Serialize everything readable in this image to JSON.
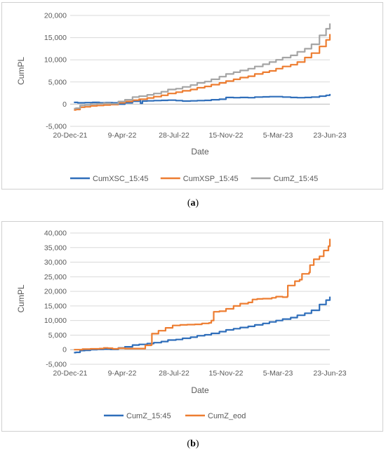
{
  "chart_data": [
    {
      "panel_label": "a",
      "type": "line",
      "title": "",
      "xlabel": "Date",
      "ylabel": "CumPL",
      "ylim": [
        -5000,
        20000
      ],
      "yticks": [
        -5000,
        0,
        5000,
        10000,
        15000,
        20000
      ],
      "ytick_labels": [
        "-5,000",
        "0",
        "5,000",
        "10,000",
        "15,000",
        "20,000"
      ],
      "xlim": [
        "2021-12-20",
        "2023-06-23"
      ],
      "xtick_labels": [
        "20-Dec-21",
        "9-Apr-22",
        "28-Jul-22",
        "15-Nov-22",
        "5-Mar-23",
        "23-Jun-23"
      ],
      "grid": "horizontal",
      "legend_position": "bottom",
      "series": [
        {
          "name": "CumXSC_15:45",
          "color": "#2f6eba",
          "x": [
            "2021-12-28",
            "2022-01-05",
            "2022-01-20",
            "2022-02-05",
            "2022-02-20",
            "2022-03-05",
            "2022-03-20",
            "2022-04-01",
            "2022-04-15",
            "2022-05-01",
            "2022-05-15",
            "2022-05-18",
            "2022-05-22",
            "2022-06-01",
            "2022-06-15",
            "2022-07-01",
            "2022-07-15",
            "2022-08-01",
            "2022-08-15",
            "2022-09-01",
            "2022-09-15",
            "2022-10-01",
            "2022-10-15",
            "2022-11-01",
            "2022-11-15",
            "2022-12-01",
            "2022-12-15",
            "2023-01-01",
            "2023-01-15",
            "2023-02-01",
            "2023-02-15",
            "2023-03-01",
            "2023-03-15",
            "2023-04-01",
            "2023-04-15",
            "2023-05-01",
            "2023-05-15",
            "2023-06-01",
            "2023-06-15",
            "2023-06-23"
          ],
          "y": [
            400,
            300,
            350,
            400,
            300,
            350,
            300,
            0,
            300,
            650,
            800,
            200,
            700,
            750,
            800,
            850,
            900,
            800,
            700,
            750,
            800,
            850,
            1000,
            1100,
            1500,
            1450,
            1500,
            1450,
            1600,
            1650,
            1700,
            1700,
            1600,
            1500,
            1450,
            1500,
            1600,
            1800,
            2000,
            2300
          ]
        },
        {
          "name": "CumXSP_15:45",
          "color": "#ed7d31",
          "x": [
            "2021-12-28",
            "2022-01-01",
            "2022-01-10",
            "2022-01-20",
            "2022-02-01",
            "2022-02-15",
            "2022-03-01",
            "2022-03-15",
            "2022-04-01",
            "2022-04-15",
            "2022-05-01",
            "2022-05-15",
            "2022-06-01",
            "2022-06-15",
            "2022-07-01",
            "2022-07-15",
            "2022-08-01",
            "2022-08-15",
            "2022-09-01",
            "2022-09-15",
            "2022-10-01",
            "2022-10-15",
            "2022-11-01",
            "2022-11-15",
            "2022-12-01",
            "2022-12-15",
            "2023-01-01",
            "2023-01-15",
            "2023-02-01",
            "2023-02-15",
            "2023-03-01",
            "2023-03-15",
            "2023-04-01",
            "2023-04-15",
            "2023-05-01",
            "2023-05-15",
            "2023-06-01",
            "2023-06-15",
            "2023-06-23"
          ],
          "y": [
            -1300,
            -1200,
            -700,
            -600,
            -400,
            -300,
            -200,
            -100,
            300,
            600,
            900,
            1100,
            1400,
            1700,
            2000,
            2400,
            2700,
            3000,
            3300,
            3700,
            4000,
            4400,
            4800,
            5200,
            5600,
            6000,
            6300,
            6800,
            7200,
            7500,
            8000,
            8500,
            8900,
            9500,
            10500,
            11500,
            13000,
            14500,
            15800
          ]
        },
        {
          "name": "CumZ_15:45",
          "color": "#a5a5a5",
          "x": [
            "2021-12-28",
            "2022-01-01",
            "2022-01-10",
            "2022-01-20",
            "2022-02-01",
            "2022-02-15",
            "2022-03-01",
            "2022-03-15",
            "2022-04-01",
            "2022-04-15",
            "2022-05-01",
            "2022-05-15",
            "2022-06-01",
            "2022-06-15",
            "2022-07-01",
            "2022-07-15",
            "2022-08-01",
            "2022-08-15",
            "2022-09-01",
            "2022-09-15",
            "2022-10-01",
            "2022-10-15",
            "2022-11-01",
            "2022-11-15",
            "2022-12-01",
            "2022-12-15",
            "2023-01-01",
            "2023-01-15",
            "2023-02-01",
            "2023-02-15",
            "2023-03-01",
            "2023-03-15",
            "2023-04-01",
            "2023-04-15",
            "2023-05-01",
            "2023-05-15",
            "2023-06-01",
            "2023-06-15",
            "2023-06-23"
          ],
          "y": [
            -1000,
            -900,
            -300,
            -200,
            0,
            100,
            200,
            100,
            600,
            1000,
            1600,
            1800,
            2100,
            2400,
            2800,
            3300,
            3500,
            3900,
            4300,
            4800,
            5100,
            5600,
            6200,
            6800,
            7200,
            7600,
            8000,
            8500,
            9000,
            9500,
            10000,
            10500,
            11000,
            11800,
            12500,
            13500,
            15500,
            17000,
            18200
          ]
        }
      ]
    },
    {
      "panel_label": "b",
      "type": "line",
      "title": "",
      "xlabel": "Date",
      "ylabel": "CumPL",
      "ylim": [
        -5000,
        40000
      ],
      "yticks": [
        -5000,
        0,
        5000,
        10000,
        15000,
        20000,
        25000,
        30000,
        35000,
        40000
      ],
      "ytick_labels": [
        "-5,000",
        "0",
        "5,000",
        "10,000",
        "15,000",
        "20,000",
        "25,000",
        "30,000",
        "35,000",
        "40,000"
      ],
      "xlim": [
        "2021-12-20",
        "2023-06-23"
      ],
      "xtick_labels": [
        "20-Dec-21",
        "9-Apr-22",
        "28-Jul-22",
        "15-Nov-22",
        "5-Mar-23",
        "23-Jun-23"
      ],
      "grid": "horizontal",
      "legend_position": "bottom",
      "series": [
        {
          "name": "CumZ_15:45",
          "color": "#2f6eba",
          "x": [
            "2021-12-28",
            "2022-01-01",
            "2022-01-10",
            "2022-01-20",
            "2022-02-01",
            "2022-02-15",
            "2022-03-01",
            "2022-03-15",
            "2022-04-01",
            "2022-04-15",
            "2022-05-01",
            "2022-05-15",
            "2022-06-01",
            "2022-06-15",
            "2022-07-01",
            "2022-07-15",
            "2022-08-01",
            "2022-08-15",
            "2022-09-01",
            "2022-09-15",
            "2022-10-01",
            "2022-10-15",
            "2022-11-01",
            "2022-11-15",
            "2022-12-01",
            "2022-12-15",
            "2023-01-01",
            "2023-01-15",
            "2023-02-01",
            "2023-02-15",
            "2023-03-01",
            "2023-03-15",
            "2023-04-01",
            "2023-04-15",
            "2023-05-01",
            "2023-05-15",
            "2023-06-01",
            "2023-06-15",
            "2023-06-23"
          ],
          "y": [
            -1000,
            -900,
            -300,
            -200,
            0,
            100,
            200,
            100,
            600,
            1000,
            1600,
            1800,
            2100,
            2400,
            2800,
            3300,
            3500,
            3900,
            4300,
            4800,
            5100,
            5600,
            6200,
            6800,
            7200,
            7600,
            8000,
            8500,
            9000,
            9500,
            10000,
            10500,
            11000,
            11800,
            12500,
            13500,
            15500,
            17000,
            18200
          ]
        },
        {
          "name": "CumZ_eod",
          "color": "#ed7d31",
          "x": [
            "2021-12-28",
            "2022-01-15",
            "2022-02-01",
            "2022-02-20",
            "2022-03-01",
            "2022-03-10",
            "2022-03-20",
            "2022-04-01",
            "2022-04-15",
            "2022-05-01",
            "2022-05-20",
            "2022-05-28",
            "2022-06-10",
            "2022-06-11",
            "2022-06-25",
            "2022-07-10",
            "2022-07-25",
            "2022-08-10",
            "2022-08-25",
            "2022-09-10",
            "2022-09-25",
            "2022-10-10",
            "2022-10-15",
            "2022-10-20",
            "2022-11-01",
            "2022-11-15",
            "2022-12-01",
            "2022-12-15",
            "2023-01-01",
            "2023-01-10",
            "2023-01-20",
            "2023-02-01",
            "2023-02-20",
            "2023-03-01",
            "2023-03-15",
            "2023-03-25",
            "2023-03-26",
            "2023-04-10",
            "2023-04-20",
            "2023-04-25",
            "2023-05-10",
            "2023-05-12",
            "2023-05-20",
            "2023-06-01",
            "2023-06-10",
            "2023-06-20",
            "2023-06-23"
          ],
          "y": [
            0,
            200,
            300,
            400,
            600,
            500,
            300,
            500,
            400,
            400,
            400,
            1500,
            1700,
            5500,
            6500,
            7500,
            8300,
            8500,
            8600,
            8700,
            9000,
            9200,
            10000,
            13000,
            13200,
            14000,
            15000,
            15800,
            16200,
            17200,
            17400,
            17500,
            17800,
            18200,
            18000,
            18300,
            22000,
            23500,
            24000,
            26000,
            26500,
            29000,
            31000,
            32000,
            34000,
            35500,
            38000
          ]
        }
      ]
    }
  ],
  "captions": {
    "a": "a",
    "b": "b"
  }
}
